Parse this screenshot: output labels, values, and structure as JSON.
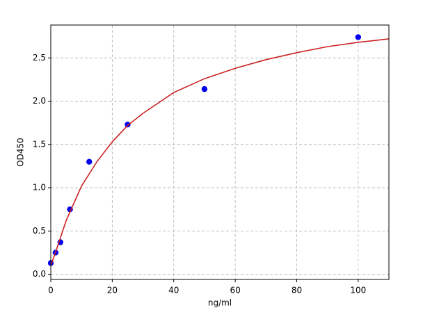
{
  "chart_data": {
    "type": "scatter",
    "xlabel": "ng/ml",
    "ylabel": "OD450",
    "xlim": [
      0,
      110
    ],
    "ylim": [
      -0.06,
      2.88
    ],
    "xticks": [
      0,
      20,
      40,
      60,
      80,
      100
    ],
    "yticks": [
      {
        "value": 0,
        "label": "0.0"
      },
      0.5,
      {
        "value": 1,
        "label": "1.0"
      },
      1.5,
      {
        "value": 2,
        "label": "2.0"
      },
      2.5
    ],
    "grid": true,
    "series": [
      {
        "kind": "points",
        "color": "#0000ee",
        "x": [
          0,
          1.56,
          3.125,
          6.25,
          12.5,
          25,
          50,
          100
        ],
        "values": [
          0.13,
          0.25,
          0.37,
          0.75,
          1.3,
          1.73,
          2.14,
          2.74
        ]
      },
      {
        "kind": "line",
        "color": "#cc2222",
        "x": [
          0,
          2,
          5,
          10,
          15,
          20,
          25,
          30,
          40,
          50,
          60,
          70,
          80,
          90,
          100,
          110
        ],
        "values": [
          0.1,
          0.3,
          0.62,
          1.02,
          1.3,
          1.53,
          1.72,
          1.86,
          2.1,
          2.26,
          2.38,
          2.48,
          2.56,
          2.63,
          2.68,
          2.72
        ]
      }
    ]
  }
}
